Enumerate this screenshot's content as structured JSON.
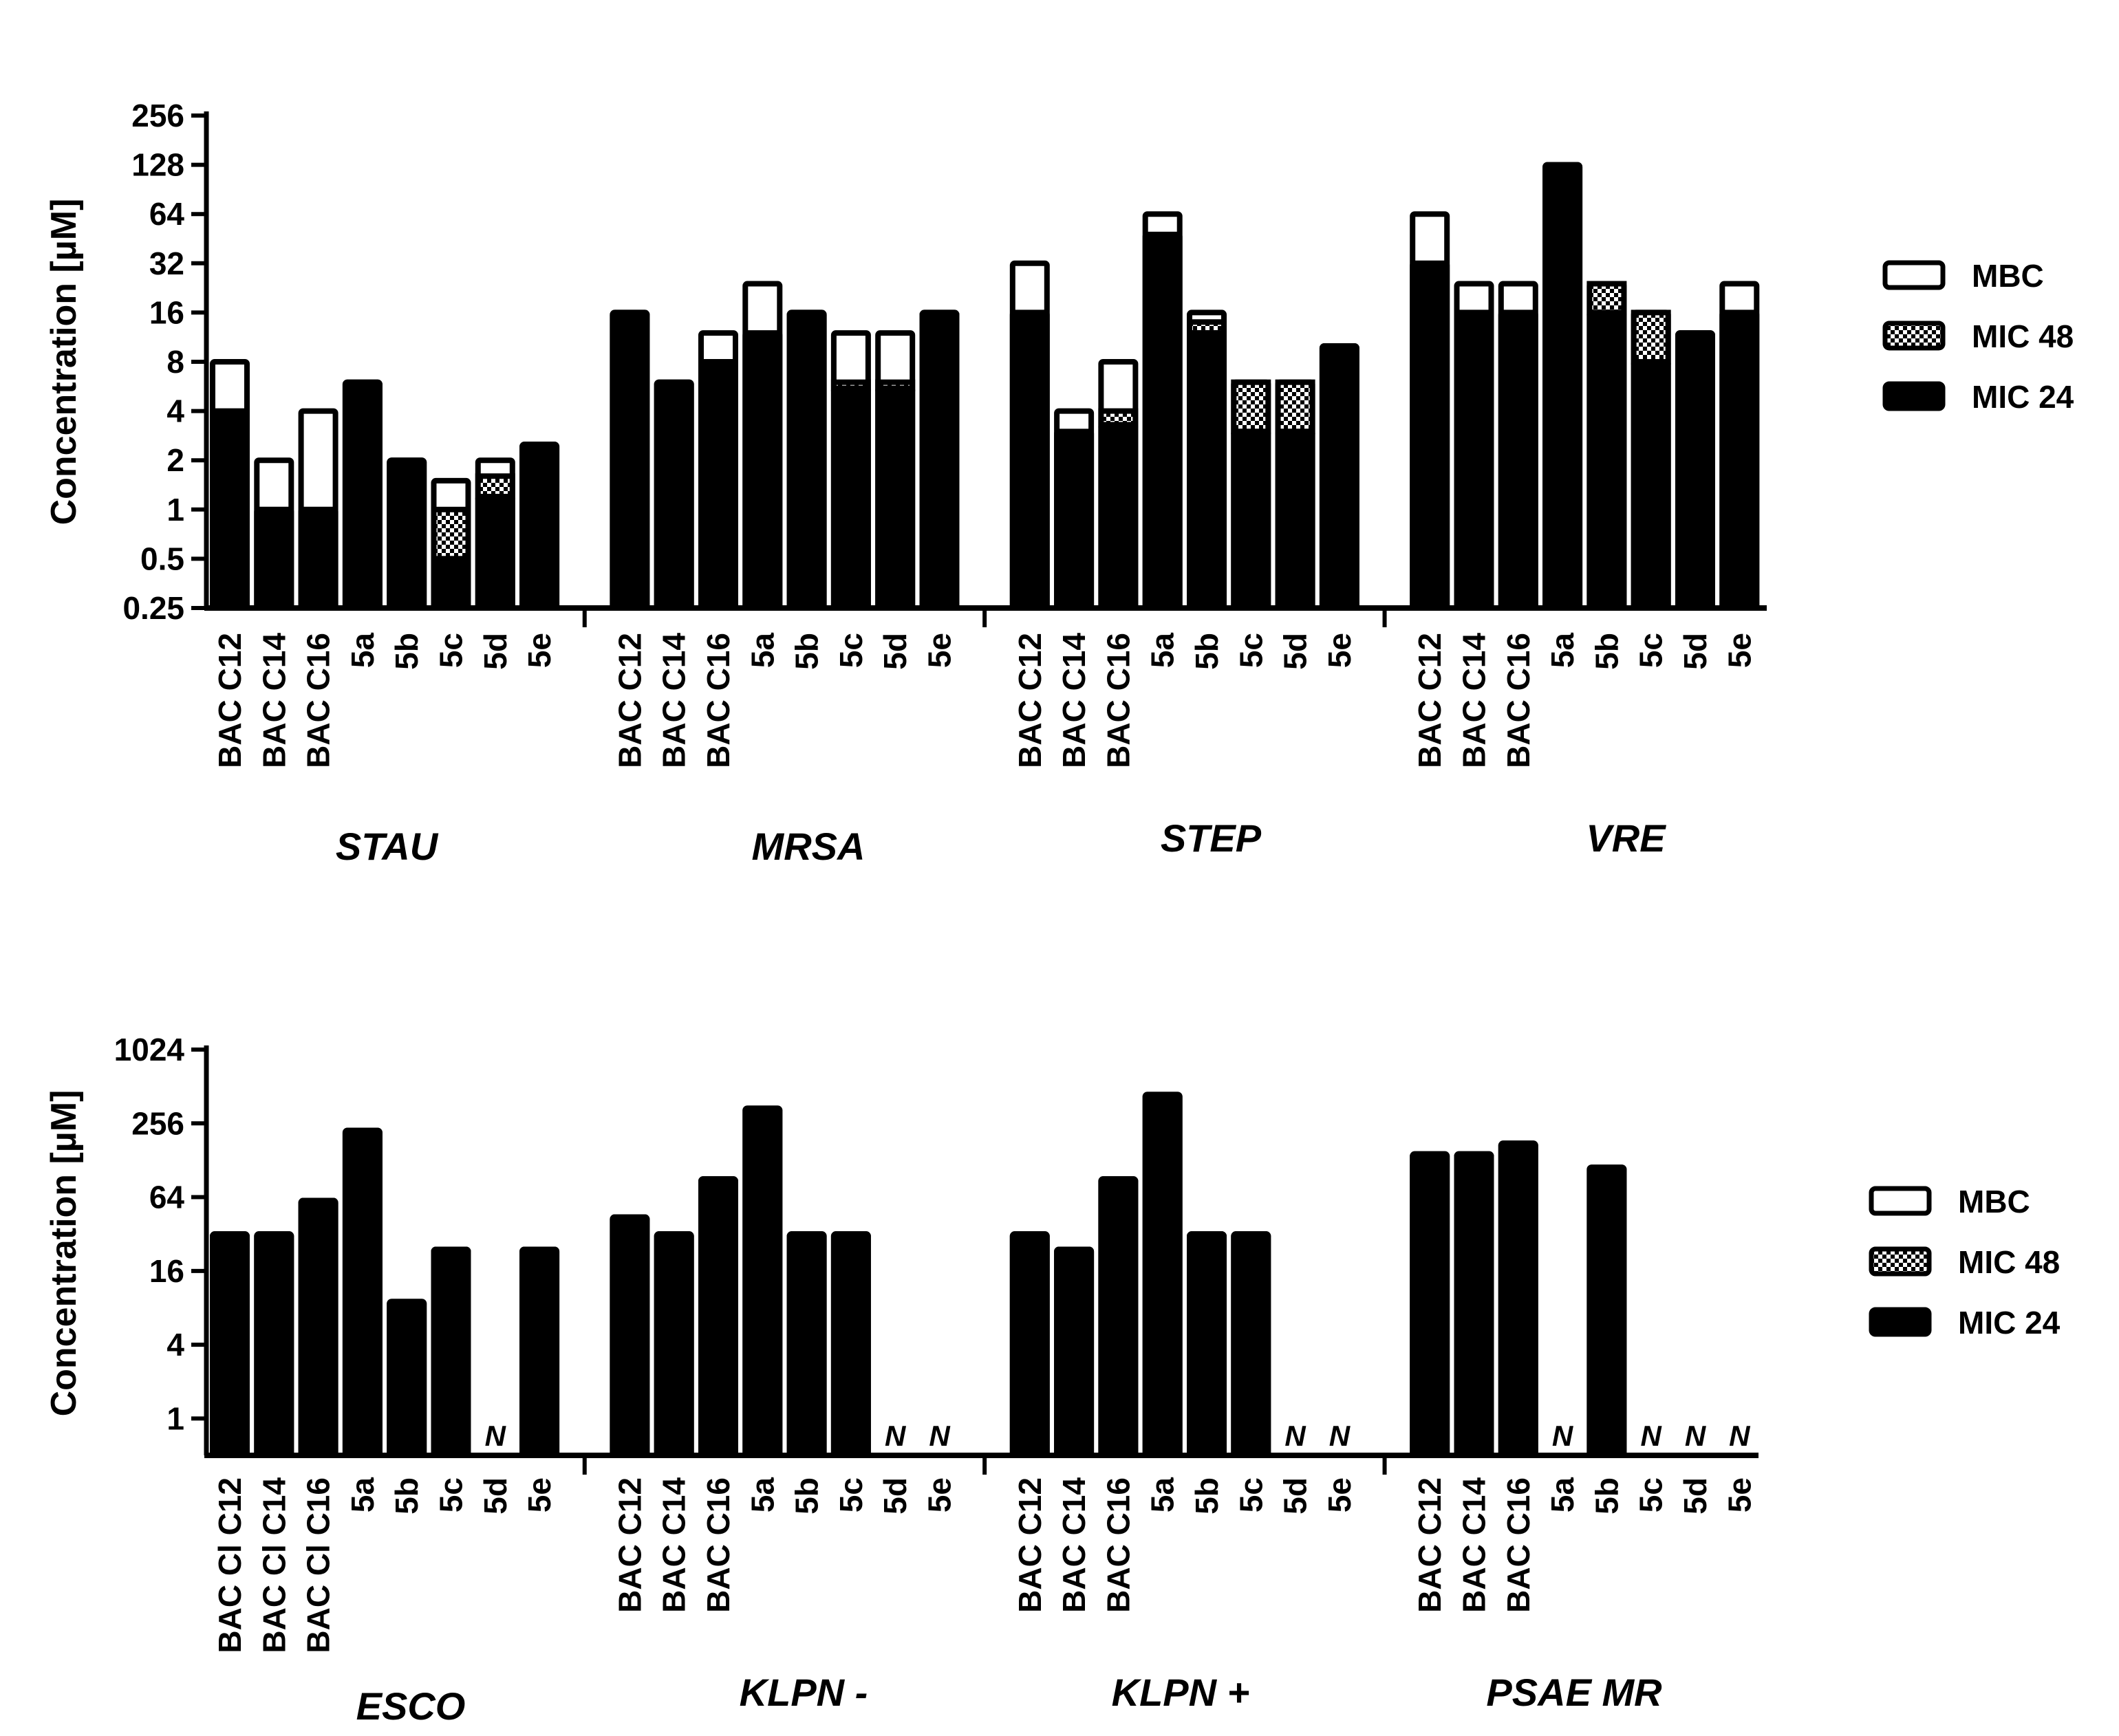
{
  "colors": {
    "bar": "#000000",
    "mbc_fill": "#ffffff",
    "background": "#ffffff"
  },
  "chart_data": [
    {
      "type": "bar",
      "stacked": true,
      "scale": "log2",
      "ylabel": "Concentration [µM]",
      "ylim": [
        0.25,
        256
      ],
      "yticks": [
        "0.25",
        "0.5",
        "1",
        "2",
        "4",
        "8",
        "16",
        "32",
        "64",
        "128",
        "256"
      ],
      "legend_position": "right",
      "legend": [
        "MBC",
        "MIC 48",
        "MIC 24"
      ],
      "groups": [
        {
          "name": "STAU",
          "bars": [
            {
              "label": "BAC C12",
              "mic24": 4,
              "mic48": 4,
              "mbc": 8
            },
            {
              "label": "BAC C14",
              "mic24": 1,
              "mic48": 1,
              "mbc": 2
            },
            {
              "label": "BAC C16",
              "mic24": 1,
              "mic48": 1,
              "mbc": 4
            },
            {
              "label": "5a",
              "mic24": 6,
              "mic48": 6,
              "mbc": 6
            },
            {
              "label": "5b",
              "mic24": 2,
              "mic48": 2,
              "mbc": 2
            },
            {
              "label": "5c",
              "mic24": 0.5,
              "mic48": 1,
              "mbc": 1.5
            },
            {
              "label": "5d",
              "mic24": 1.2,
              "mic48": 1.6,
              "mbc": 2
            },
            {
              "label": "5e",
              "mic24": 2.5,
              "mic48": 2.5,
              "mbc": 2.5
            }
          ]
        },
        {
          "name": "MRSA",
          "bars": [
            {
              "label": "BAC C12",
              "mic24": 16,
              "mic48": 16,
              "mbc": 16
            },
            {
              "label": "BAC C14",
              "mic24": 6,
              "mic48": 6,
              "mbc": 6
            },
            {
              "label": "BAC C16",
              "mic24": 8,
              "mic48": 8,
              "mbc": 12
            },
            {
              "label": "5a",
              "mic24": 12,
              "mic48": 12,
              "mbc": 24
            },
            {
              "label": "5b",
              "mic24": 16,
              "mic48": 16,
              "mbc": 16
            },
            {
              "label": "5c",
              "mic24": 5.5,
              "mic48": 6,
              "mbc": 12
            },
            {
              "label": "5d",
              "mic24": 5.5,
              "mic48": 6,
              "mbc": 12
            },
            {
              "label": "5e",
              "mic24": 16,
              "mic48": 16,
              "mbc": 16
            }
          ]
        },
        {
          "name": "STEP",
          "bars": [
            {
              "label": "BAC C12",
              "mic24": 16,
              "mic48": 16,
              "mbc": 32
            },
            {
              "label": "BAC C14",
              "mic24": 3,
              "mic48": 3,
              "mbc": 4
            },
            {
              "label": "BAC C16",
              "mic24": 3.3,
              "mic48": 4,
              "mbc": 8
            },
            {
              "label": "5a",
              "mic24": 48,
              "mic48": 48,
              "mbc": 64
            },
            {
              "label": "5b",
              "mic24": 12,
              "mic48": 14,
              "mbc": 16
            },
            {
              "label": "5c",
              "mic24": 3,
              "mic48": 6,
              "mbc": 6
            },
            {
              "label": "5d",
              "mic24": 3,
              "mic48": 6,
              "mbc": 6
            },
            {
              "label": "5e",
              "mic24": 10,
              "mic48": 10,
              "mbc": 10
            }
          ]
        },
        {
          "name": "VRE",
          "bars": [
            {
              "label": "BAC C12",
              "mic24": 32,
              "mic48": 32,
              "mbc": 64
            },
            {
              "label": "BAC C14",
              "mic24": 16,
              "mic48": 16,
              "mbc": 24
            },
            {
              "label": "BAC C16",
              "mic24": 16,
              "mic48": 16,
              "mbc": 24
            },
            {
              "label": "5a",
              "mic24": 128,
              "mic48": 128,
              "mbc": 128
            },
            {
              "label": "5b",
              "mic24": 16,
              "mic48": 24,
              "mbc": 24
            },
            {
              "label": "5c",
              "mic24": 8,
              "mic48": 16,
              "mbc": 16
            },
            {
              "label": "5d",
              "mic24": 12,
              "mic48": 12,
              "mbc": 12
            },
            {
              "label": "5e",
              "mic24": 16,
              "mic48": 16,
              "mbc": 24
            }
          ]
        }
      ]
    },
    {
      "type": "bar",
      "stacked": true,
      "scale": "log2",
      "ylabel": "Concentration [µM]",
      "ylim": [
        0.5,
        1024
      ],
      "yticks": [
        "1",
        "4",
        "16",
        "64",
        "256",
        "1024"
      ],
      "legend_position": "right",
      "legend": [
        "MBC",
        "MIC 48",
        "MIC 24"
      ],
      "na_marker": "N",
      "groups": [
        {
          "name": "ESCO",
          "bars": [
            {
              "label": "BAC Cl C12",
              "mic24": 32,
              "mic48": 32,
              "mbc": 32
            },
            {
              "label": "BAC Cl C14",
              "mic24": 32,
              "mic48": 32,
              "mbc": 32
            },
            {
              "label": "BAC Cl C16",
              "mic24": 60,
              "mic48": 60,
              "mbc": 60
            },
            {
              "label": "5a",
              "mic24": 224,
              "mic48": 224,
              "mbc": 224
            },
            {
              "label": "5b",
              "mic24": 9,
              "mic48": 9,
              "mbc": 9
            },
            {
              "label": "5c",
              "mic24": 24,
              "mic48": 24,
              "mbc": 24
            },
            {
              "label": "5d",
              "mic24": null,
              "mic48": null,
              "mbc": null
            },
            {
              "label": "5e",
              "mic24": 24,
              "mic48": 24,
              "mbc": 24
            }
          ]
        },
        {
          "name": "KLPN -",
          "bars": [
            {
              "label": "BAC C12",
              "mic24": 44,
              "mic48": 44,
              "mbc": 44
            },
            {
              "label": "BAC C14",
              "mic24": 32,
              "mic48": 32,
              "mbc": 32
            },
            {
              "label": "BAC C16",
              "mic24": 90,
              "mic48": 90,
              "mbc": 90
            },
            {
              "label": "5a",
              "mic24": 340,
              "mic48": 340,
              "mbc": 340
            },
            {
              "label": "5b",
              "mic24": 32,
              "mic48": 32,
              "mbc": 32
            },
            {
              "label": "5c",
              "mic24": 32,
              "mic48": 32,
              "mbc": 32
            },
            {
              "label": "5d",
              "mic24": null,
              "mic48": null,
              "mbc": null
            },
            {
              "label": "5e",
              "mic24": null,
              "mic48": null,
              "mbc": null
            }
          ]
        },
        {
          "name": "KLPN +",
          "bars": [
            {
              "label": "BAC C12",
              "mic24": 32,
              "mic48": 32,
              "mbc": 32
            },
            {
              "label": "BAC C14",
              "mic24": 24,
              "mic48": 24,
              "mbc": 24
            },
            {
              "label": "BAC C16",
              "mic24": 90,
              "mic48": 90,
              "mbc": 90
            },
            {
              "label": "5a",
              "mic24": 440,
              "mic48": 440,
              "mbc": 440
            },
            {
              "label": "5b",
              "mic24": 32,
              "mic48": 32,
              "mbc": 32
            },
            {
              "label": "5c",
              "mic24": 32,
              "mic48": 32,
              "mbc": 32
            },
            {
              "label": "5d",
              "mic24": null,
              "mic48": null,
              "mbc": null
            },
            {
              "label": "5e",
              "mic24": null,
              "mic48": null,
              "mbc": null
            }
          ]
        },
        {
          "name": "PSAE MR",
          "bars": [
            {
              "label": "BAC C12",
              "mic24": 144,
              "mic48": 144,
              "mbc": 144
            },
            {
              "label": "BAC C14",
              "mic24": 144,
              "mic48": 144,
              "mbc": 144
            },
            {
              "label": "BAC C16",
              "mic24": 176,
              "mic48": 176,
              "mbc": 176
            },
            {
              "label": "5a",
              "mic24": null,
              "mic48": null,
              "mbc": null
            },
            {
              "label": "5b",
              "mic24": 112,
              "mic48": 112,
              "mbc": 112
            },
            {
              "label": "5c",
              "mic24": null,
              "mic48": null,
              "mbc": null
            },
            {
              "label": "5d",
              "mic24": null,
              "mic48": null,
              "mbc": null
            },
            {
              "label": "5e",
              "mic24": null,
              "mic48": null,
              "mbc": null
            }
          ]
        }
      ]
    }
  ]
}
